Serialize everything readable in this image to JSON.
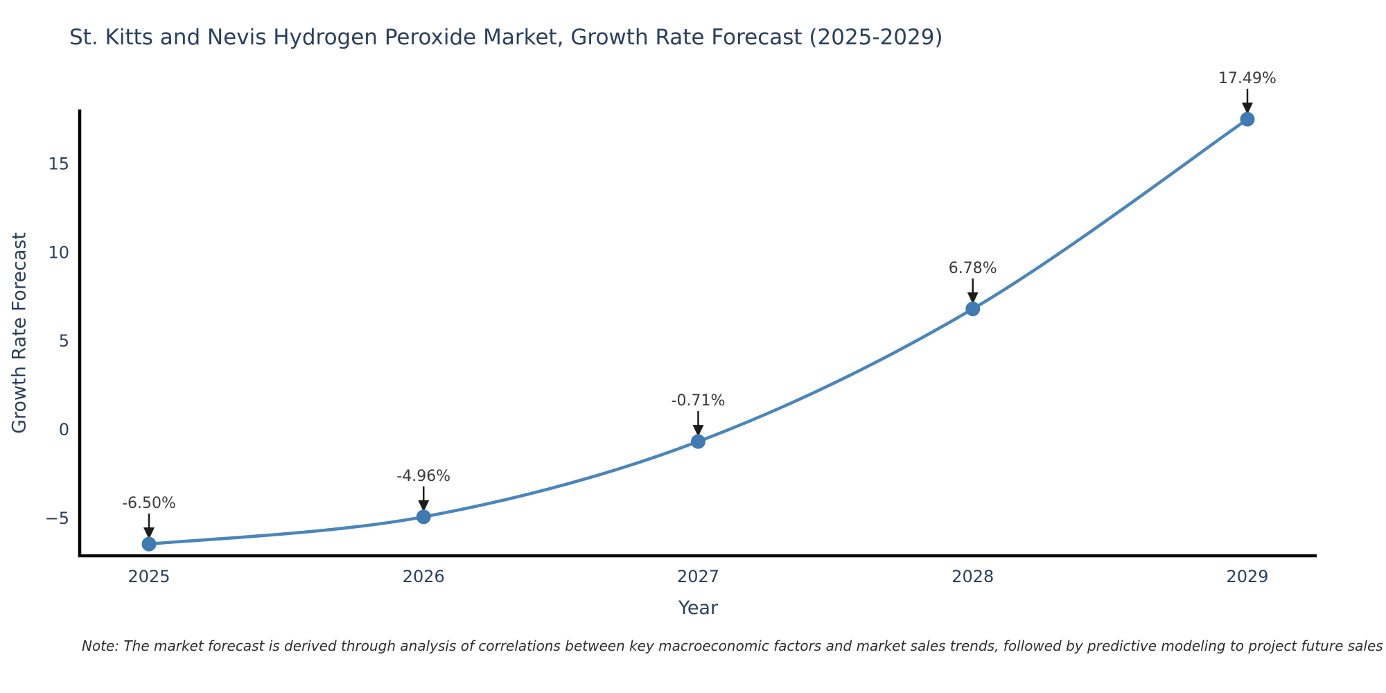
{
  "note": "Note: The market forecast is derived through analysis of correlations between key macroeconomic factors and market sales trends, followed by predictive modeling to project future sales",
  "chart_data": {
    "type": "line",
    "title": "St. Kitts and Nevis Hydrogen Peroxide Market, Growth Rate Forecast (2025-2029)",
    "xlabel": "Year",
    "ylabel": "Growth Rate Forecast",
    "categories": [
      "2025",
      "2026",
      "2027",
      "2028",
      "2029"
    ],
    "series": [
      {
        "name": "Growth Rate Forecast",
        "values": [
          -6.5,
          -4.96,
          -0.71,
          6.78,
          17.49
        ],
        "point_labels": [
          "-6.50%",
          "-4.96%",
          "-0.71%",
          "6.78%",
          "17.49%"
        ]
      }
    ],
    "yticks": [
      -5,
      0,
      5,
      10,
      15
    ],
    "ylim": [
      -7.16,
      18.04
    ],
    "line_shape": "spline",
    "grid": false,
    "legend": "none",
    "annotations": "arrow-down-to-point",
    "colors": {
      "line": "#4a86ba",
      "marker": "#3f7ab2",
      "axis": "#000000",
      "title_text": "#2a3f5f",
      "tick_text": "#2a3f5f",
      "annotation_text": "#3a3a3a",
      "arrow": "#1c1c1c",
      "background": "#ffffff"
    }
  }
}
